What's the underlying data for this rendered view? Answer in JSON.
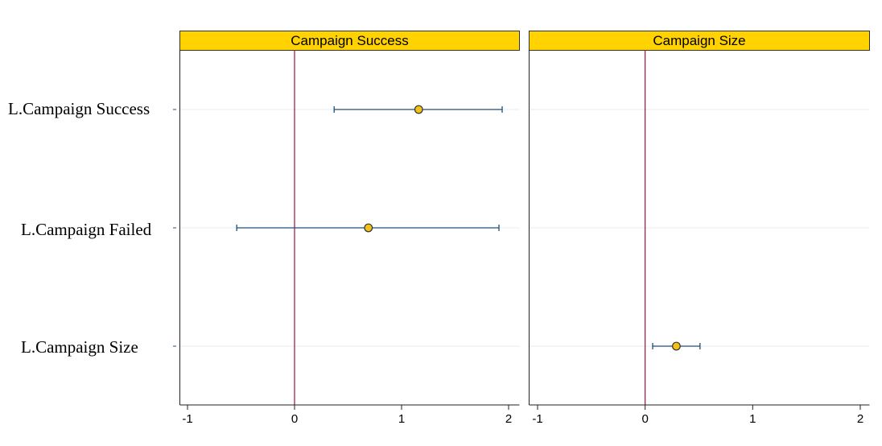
{
  "chart_data": {
    "type": "coefplot",
    "row_labels": [
      "L.Campaign Success",
      "L.Campaign Failed",
      "L.Campaign Size"
    ],
    "x_ticks": [
      -1,
      0,
      1,
      2
    ],
    "xlim": [
      -1.08,
      2.05
    ],
    "reference_line": 0,
    "grid": true,
    "colors": {
      "header_fill": "#FFD200",
      "marker_fill": "#F2C21A",
      "ci_line": "#1F4E79",
      "reference_line": "#A0103A",
      "grid": "#E6ECF2"
    },
    "panels": [
      {
        "title": "Campaign Success",
        "estimates": [
          {
            "row": 0,
            "coef": 1.16,
            "ci_low": 0.37,
            "ci_high": 1.94
          },
          {
            "row": 1,
            "coef": 0.69,
            "ci_low": -0.54,
            "ci_high": 1.91
          }
        ]
      },
      {
        "title": "Campaign Size",
        "estimates": [
          {
            "row": 2,
            "coef": 0.29,
            "ci_low": 0.07,
            "ci_high": 0.51
          }
        ]
      }
    ]
  }
}
